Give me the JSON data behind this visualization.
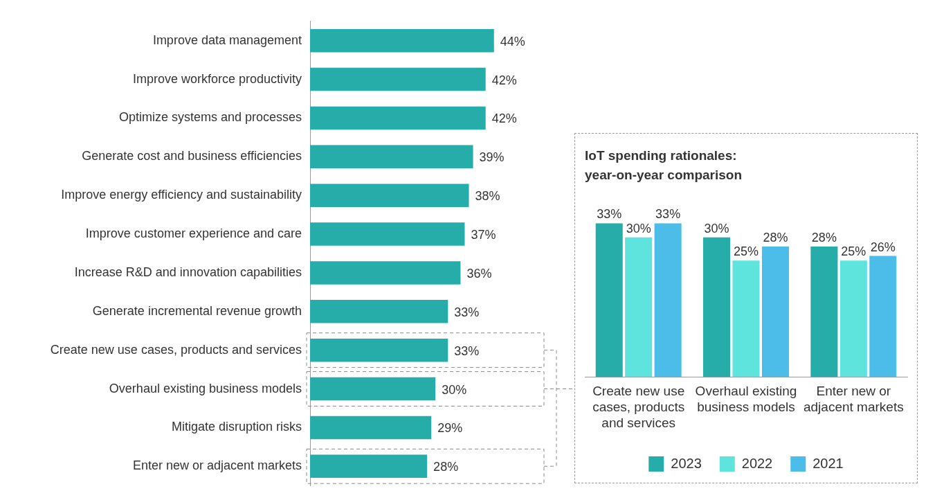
{
  "chart_data": [
    {
      "type": "bar",
      "orientation": "horizontal",
      "categories": [
        "Improve data management",
        "Improve workforce productivity",
        "Optimize systems and processes",
        "Generate cost and business efficiencies",
        "Improve energy efficiency and sustainability",
        "Improve customer experience and care",
        "Increase R&D and innovation capabilities",
        "Generate incremental revenue growth",
        "Create new use cases, products and services",
        "Overhaul existing business models",
        "Mitigate disruption risks",
        "Enter new or adjacent markets"
      ],
      "values": [
        44,
        42,
        42,
        39,
        38,
        37,
        36,
        33,
        33,
        30,
        29,
        28
      ],
      "value_labels": [
        "44%",
        "42%",
        "42%",
        "39%",
        "38%",
        "37%",
        "36%",
        "33%",
        "33%",
        "30%",
        "29%",
        "28%"
      ],
      "color": "#26ada9",
      "grid": false,
      "legend": false
    },
    {
      "type": "bar",
      "title": "IoT spending rationales:\nyear-on-year comparison",
      "categories": [
        "Create new use cases, products and services",
        "Overhaul existing business models",
        "Enter new or adjacent markets"
      ],
      "series": [
        {
          "name": "2023",
          "color": "#26ada9",
          "values": [
            33,
            30,
            28
          ],
          "value_labels": [
            "33%",
            "30%",
            "28%"
          ]
        },
        {
          "name": "2022",
          "color": "#5ee4dd",
          "values": [
            30,
            25,
            25
          ],
          "value_labels": [
            "30%",
            "25%",
            "25%"
          ]
        },
        {
          "name": "2021",
          "color": "#4cbde8",
          "values": [
            33,
            28,
            26
          ],
          "value_labels": [
            "33%",
            "28%",
            "26%"
          ]
        }
      ],
      "grid": false,
      "legend": "bottom"
    }
  ]
}
